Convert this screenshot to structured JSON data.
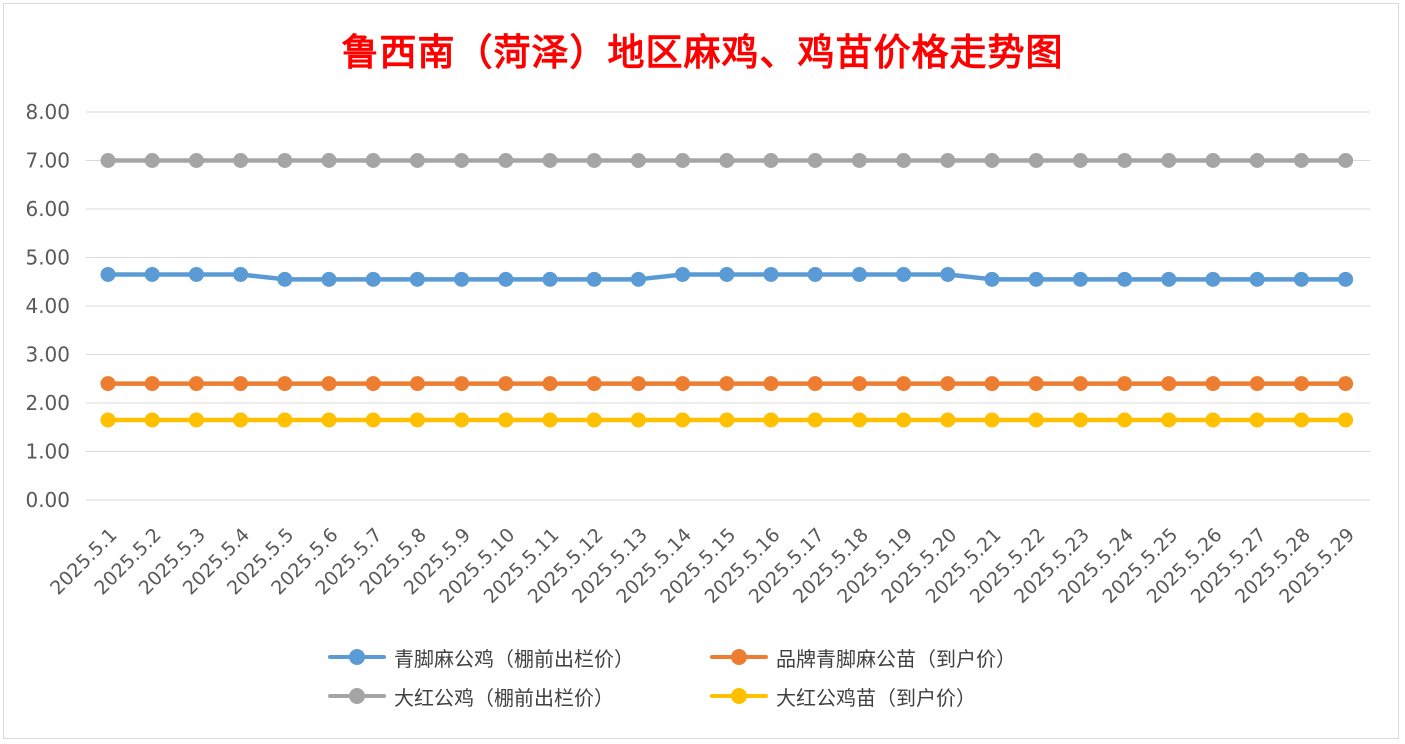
{
  "chart_data": {
    "type": "line",
    "title": "鲁西南（菏泽）地区麻鸡、鸡苗价格走势图",
    "xlabel": "",
    "ylabel": "",
    "ylim": [
      0,
      8
    ],
    "yticks": [
      "0.00",
      "1.00",
      "2.00",
      "3.00",
      "4.00",
      "5.00",
      "6.00",
      "7.00",
      "8.00"
    ],
    "grid": true,
    "legend_position": "bottom",
    "categories": [
      "2025.5.1",
      "2025.5.2",
      "2025.5.3",
      "2025.5.4",
      "2025.5.5",
      "2025.5.6",
      "2025.5.7",
      "2025.5.8",
      "2025.5.9",
      "2025.5.10",
      "2025.5.11",
      "2025.5.12",
      "2025.5.13",
      "2025.5.14",
      "2025.5.15",
      "2025.5.16",
      "2025.5.17",
      "2025.5.18",
      "2025.5.19",
      "2025.5.20",
      "2025.5.21",
      "2025.5.22",
      "2025.5.23",
      "2025.5.24",
      "2025.5.25",
      "2025.5.26",
      "2025.5.27",
      "2025.5.28",
      "2025.5.29"
    ],
    "series": [
      {
        "name": "青脚麻公鸡（棚前出栏价）",
        "color": "#5b9bd5",
        "values": [
          4.65,
          4.65,
          4.65,
          4.65,
          4.55,
          4.55,
          4.55,
          4.55,
          4.55,
          4.55,
          4.55,
          4.55,
          4.55,
          4.65,
          4.65,
          4.65,
          4.65,
          4.65,
          4.65,
          4.65,
          4.55,
          4.55,
          4.55,
          4.55,
          4.55,
          4.55,
          4.55,
          4.55,
          4.55
        ]
      },
      {
        "name": "品牌青脚麻公苗（到户价）",
        "color": "#ed7d31",
        "values": [
          2.4,
          2.4,
          2.4,
          2.4,
          2.4,
          2.4,
          2.4,
          2.4,
          2.4,
          2.4,
          2.4,
          2.4,
          2.4,
          2.4,
          2.4,
          2.4,
          2.4,
          2.4,
          2.4,
          2.4,
          2.4,
          2.4,
          2.4,
          2.4,
          2.4,
          2.4,
          2.4,
          2.4,
          2.4
        ]
      },
      {
        "name": "大红公鸡（棚前出栏价）",
        "color": "#a5a5a5",
        "values": [
          7,
          7,
          7,
          7,
          7,
          7,
          7,
          7,
          7,
          7,
          7,
          7,
          7,
          7,
          7,
          7,
          7,
          7,
          7,
          7,
          7,
          7,
          7,
          7,
          7,
          7,
          7,
          7,
          7
        ]
      },
      {
        "name": "大红公鸡苗（到户价）",
        "color": "#ffc000",
        "values": [
          1.65,
          1.65,
          1.65,
          1.65,
          1.65,
          1.65,
          1.65,
          1.65,
          1.65,
          1.65,
          1.65,
          1.65,
          1.65,
          1.65,
          1.65,
          1.65,
          1.65,
          1.65,
          1.65,
          1.65,
          1.65,
          1.65,
          1.65,
          1.65,
          1.65,
          1.65,
          1.65,
          1.65,
          1.65
        ]
      }
    ]
  }
}
